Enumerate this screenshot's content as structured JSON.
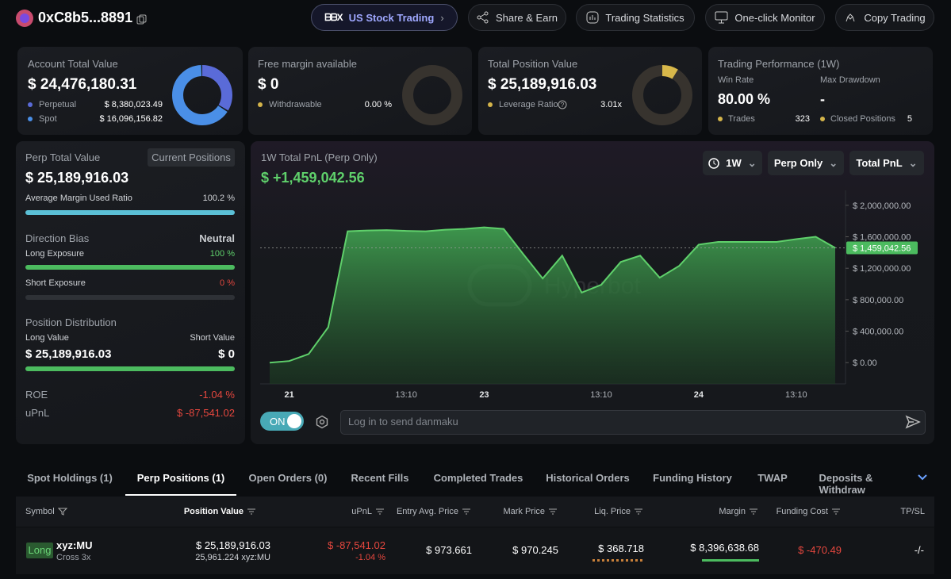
{
  "header": {
    "address": "0xC8b5...8891",
    "nav": [
      "US Stock Trading",
      "Share & Earn",
      "Trading Statistics",
      "One-click Monitor",
      "Copy Trading"
    ]
  },
  "account": {
    "title": "Account Total Value",
    "value": "$ 24,476,180.31",
    "breakdown": [
      {
        "name": "Perpetual",
        "value": 8380023.49,
        "label": "$ 8,380,023.49",
        "color": "#5a6bd8"
      },
      {
        "name": "Spot",
        "value": 16096156.82,
        "label": "$ 16,096,156.82",
        "color": "#4a8fe7"
      }
    ]
  },
  "free_margin": {
    "title": "Free margin available",
    "value": "$ 0",
    "item": "Withdrawable",
    "item_value": "0.00 %"
  },
  "total_position": {
    "title": "Total Position Value",
    "value": "$ 25,189,916.03",
    "item": "Leverage Ratio",
    "item_value": "3.01x"
  },
  "performance": {
    "title": "Trading Performance (1W)",
    "win_rate_label": "Win Rate",
    "win_rate": "80.00 %",
    "max_drawdown_label": "Max Drawdown",
    "max_drawdown": "-",
    "trades_label": "Trades",
    "trades": "323",
    "closed_label": "Closed Positions",
    "closed": "5"
  },
  "perp": {
    "title": "Perp Total Value",
    "badge": "Current Positions",
    "value": "$ 25,189,916.03",
    "margin_ratio_label": "Average Margin Used Ratio",
    "margin_ratio": "100.2 %",
    "direction_title": "Direction Bias",
    "direction": "Neutral",
    "long_label": "Long Exposure",
    "long": "100 %",
    "short_label": "Short Exposure",
    "short": "0 %",
    "distribution_title": "Position Distribution",
    "long_value_label": "Long Value",
    "long_value": "$ 25,189,916.03",
    "short_value_label": "Short Value",
    "short_value": "$ 0",
    "roe_label": "ROE",
    "roe": "-1.04 %",
    "upnl_label": "uPnL",
    "upnl": "$ -87,541.02"
  },
  "pnl": {
    "title": "1W Total PnL (Perp Only)",
    "value": "$ +1,459,042.56",
    "filters": [
      "1W",
      "Perp Only",
      "Total PnL"
    ],
    "chart": {
      "type": "area",
      "color": "#5fd06b",
      "categories": [
        null,
        "21",
        null,
        null,
        null,
        null,
        null,
        "13:10",
        null,
        null,
        null,
        "23",
        null,
        null,
        null,
        null,
        null,
        "13:10",
        null,
        null,
        null,
        null,
        "24",
        null,
        null,
        null,
        null,
        "13:10",
        null,
        null
      ],
      "values": [
        0,
        20000,
        110000,
        450000,
        1670000,
        1680000,
        1685000,
        1675000,
        1670000,
        1690000,
        1700000,
        1720000,
        1700000,
        1380000,
        1070000,
        1360000,
        890000,
        990000,
        1280000,
        1360000,
        1080000,
        1230000,
        1500000,
        1535000,
        1535000,
        1535000,
        1535000,
        1570000,
        1600000,
        1459042.56
      ],
      "ylim": [
        -270000,
        2190000
      ],
      "yticks": [
        {
          "value": 0,
          "label": "$ 0.00"
        },
        {
          "value": 400000,
          "label": "$ 400,000.00"
        },
        {
          "value": 800000,
          "label": "$ 800,000.00"
        },
        {
          "value": 1200000,
          "label": "$ 1,200,000.00"
        },
        {
          "value": 1600000,
          "label": "$ 1,600,000.00"
        },
        {
          "value": 2000000,
          "label": "$ 2,000,000.00"
        }
      ],
      "current": {
        "value": 1459042.56,
        "label": "$ 1,459,042.56"
      }
    }
  },
  "danmaku": {
    "toggle": "ON",
    "placeholder": "Log in to send danmaku"
  },
  "watermark": "Hyperbot",
  "tabs": [
    "Spot Holdings (1)",
    "Perp Positions (1)",
    "Open Orders (0)",
    "Recent Fills",
    "Completed Trades",
    "Historical Orders",
    "Funding History",
    "TWAP",
    "Deposits & Withdraw"
  ],
  "active_tab": 1,
  "table": {
    "headers": [
      "Symbol",
      "Position Value",
      "uPnL",
      "Entry Avg. Price",
      "Mark Price",
      "Liq. Price",
      "Margin",
      "Funding Cost",
      "TP/SL"
    ],
    "rows": [
      {
        "side": "Long",
        "symbol": "xyz:MU",
        "mode": "Cross 3x",
        "position_value": "$ 25,189,916.03",
        "position_size": "25,961.224 xyz:MU",
        "upnl": "$ -87,541.02",
        "upnl_pct": "-1.04 %",
        "entry": "$ 973.661",
        "mark": "$ 970.245",
        "liq": "$ 368.718",
        "margin": "$ 8,396,638.68",
        "funding": "$ -470.49",
        "tpsl": "-/-"
      }
    ]
  }
}
